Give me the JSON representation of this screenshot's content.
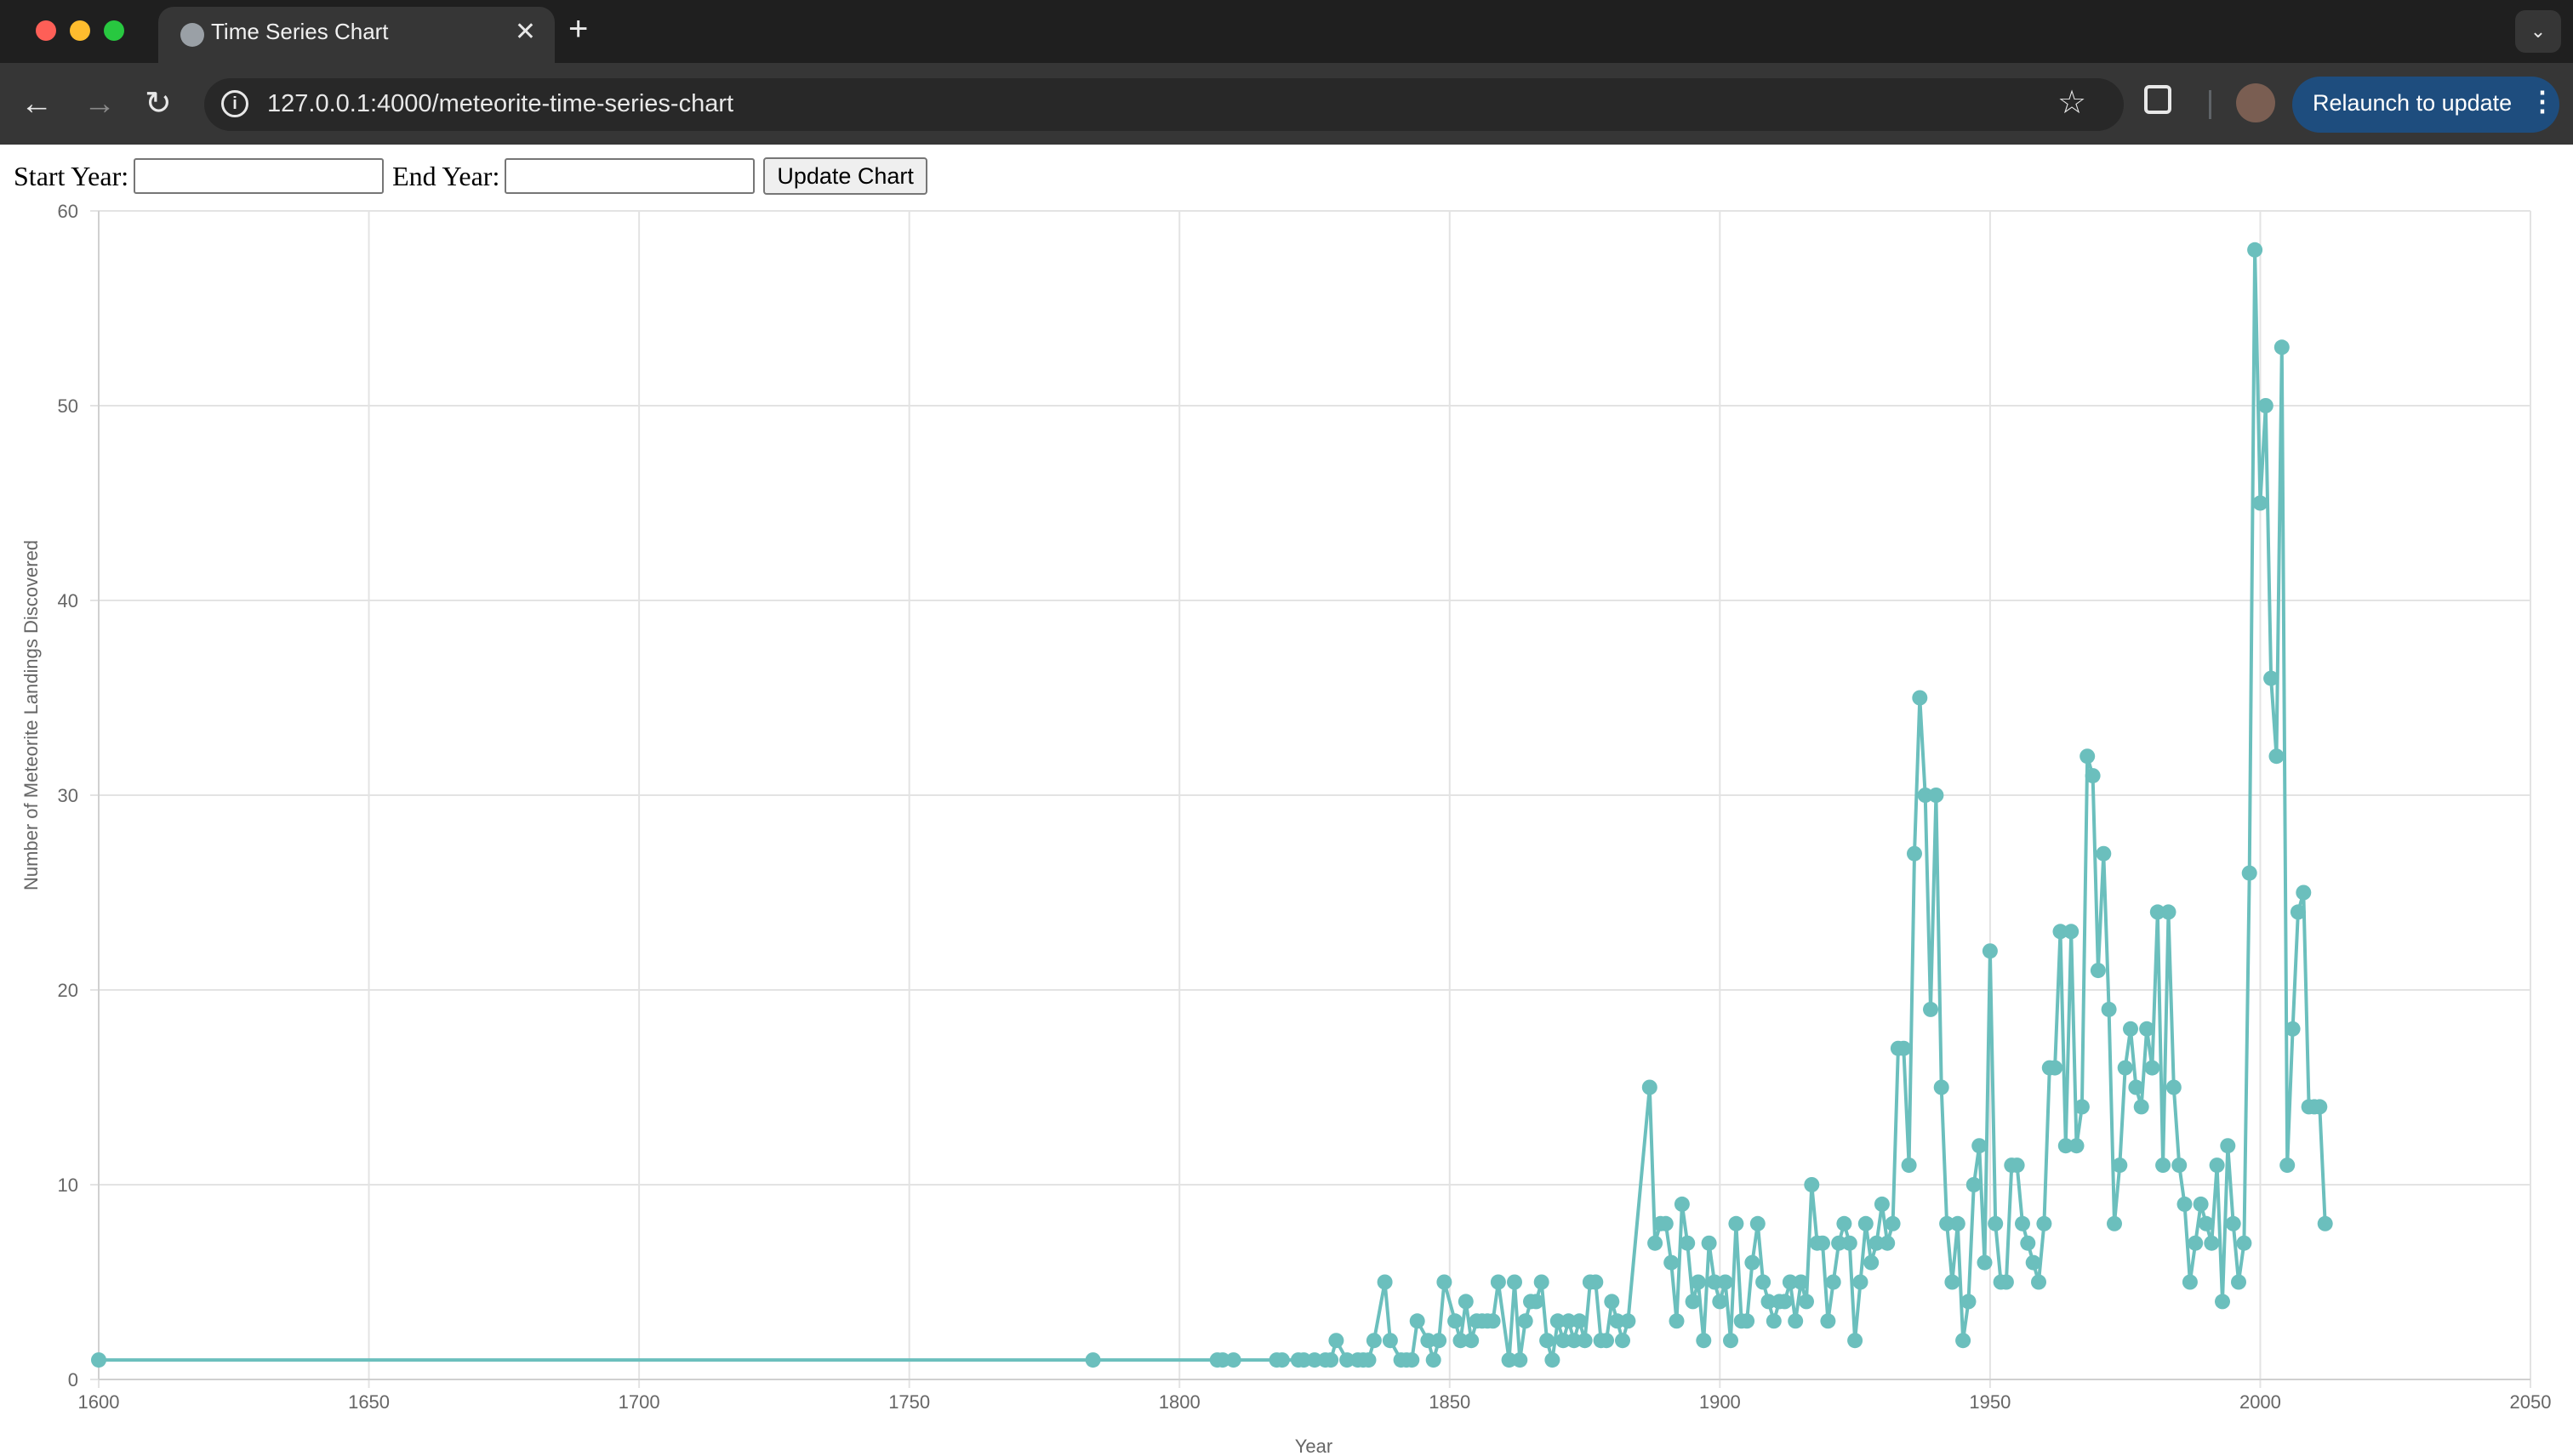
{
  "browser": {
    "tab_title": "Time Series Chart",
    "url": "127.0.0.1:4000/meteorite-time-series-chart",
    "relaunch_label": "Relaunch to update"
  },
  "controls": {
    "start_label": "Start Year:",
    "end_label": "End Year:",
    "start_value": "",
    "end_value": "",
    "update_label": "Update Chart"
  },
  "chart_data": {
    "type": "line",
    "xlabel": "Year",
    "ylabel": "Number of Meteorite Landings Discovered",
    "xlim": [
      1600,
      2050
    ],
    "ylim": [
      0,
      60
    ],
    "x_ticks": [
      1600,
      1650,
      1700,
      1750,
      1800,
      1850,
      1900,
      1950,
      2000,
      2050
    ],
    "y_ticks": [
      0,
      10,
      20,
      30,
      40,
      50,
      60
    ],
    "grid": true,
    "line_color": "#6bbfbd",
    "points": [
      [
        1600,
        1
      ],
      [
        1784,
        1
      ],
      [
        1807,
        1
      ],
      [
        1808,
        1
      ],
      [
        1810,
        1
      ],
      [
        1818,
        1
      ],
      [
        1819,
        1
      ],
      [
        1822,
        1
      ],
      [
        1823,
        1
      ],
      [
        1825,
        1
      ],
      [
        1827,
        1
      ],
      [
        1828,
        1
      ],
      [
        1829,
        2
      ],
      [
        1831,
        1
      ],
      [
        1833,
        1
      ],
      [
        1834,
        1
      ],
      [
        1835,
        1
      ],
      [
        1836,
        2
      ],
      [
        1838,
        5
      ],
      [
        1839,
        2
      ],
      [
        1841,
        1
      ],
      [
        1842,
        1
      ],
      [
        1843,
        1
      ],
      [
        1844,
        3
      ],
      [
        1846,
        2
      ],
      [
        1847,
        1
      ],
      [
        1848,
        2
      ],
      [
        1849,
        5
      ],
      [
        1851,
        3
      ],
      [
        1852,
        2
      ],
      [
        1853,
        4
      ],
      [
        1854,
        2
      ],
      [
        1855,
        3
      ],
      [
        1856,
        3
      ],
      [
        1857,
        3
      ],
      [
        1858,
        3
      ],
      [
        1859,
        5
      ],
      [
        1861,
        1
      ],
      [
        1862,
        5
      ],
      [
        1863,
        1
      ],
      [
        1864,
        3
      ],
      [
        1865,
        4
      ],
      [
        1866,
        4
      ],
      [
        1867,
        5
      ],
      [
        1868,
        2
      ],
      [
        1869,
        1
      ],
      [
        1870,
        3
      ],
      [
        1871,
        2
      ],
      [
        1872,
        3
      ],
      [
        1873,
        2
      ],
      [
        1874,
        3
      ],
      [
        1875,
        2
      ],
      [
        1876,
        5
      ],
      [
        1877,
        5
      ],
      [
        1878,
        2
      ],
      [
        1879,
        2
      ],
      [
        1880,
        4
      ],
      [
        1881,
        3
      ],
      [
        1882,
        2
      ],
      [
        1883,
        3
      ],
      [
        1887,
        15
      ],
      [
        1888,
        7
      ],
      [
        1889,
        8
      ],
      [
        1890,
        8
      ],
      [
        1891,
        6
      ],
      [
        1892,
        3
      ],
      [
        1893,
        9
      ],
      [
        1894,
        7
      ],
      [
        1895,
        4
      ],
      [
        1896,
        5
      ],
      [
        1897,
        2
      ],
      [
        1898,
        7
      ],
      [
        1899,
        5
      ],
      [
        1900,
        4
      ],
      [
        1901,
        5
      ],
      [
        1902,
        2
      ],
      [
        1903,
        8
      ],
      [
        1904,
        3
      ],
      [
        1905,
        3
      ],
      [
        1906,
        6
      ],
      [
        1907,
        8
      ],
      [
        1908,
        5
      ],
      [
        1909,
        4
      ],
      [
        1910,
        3
      ],
      [
        1911,
        4
      ],
      [
        1912,
        4
      ],
      [
        1913,
        5
      ],
      [
        1914,
        3
      ],
      [
        1915,
        5
      ],
      [
        1916,
        4
      ],
      [
        1917,
        10
      ],
      [
        1918,
        7
      ],
      [
        1919,
        7
      ],
      [
        1920,
        3
      ],
      [
        1921,
        5
      ],
      [
        1922,
        7
      ],
      [
        1923,
        8
      ],
      [
        1924,
        7
      ],
      [
        1925,
        2
      ],
      [
        1926,
        5
      ],
      [
        1927,
        8
      ],
      [
        1928,
        6
      ],
      [
        1929,
        7
      ],
      [
        1930,
        9
      ],
      [
        1931,
        7
      ],
      [
        1932,
        8
      ],
      [
        1933,
        17
      ],
      [
        1934,
        17
      ],
      [
        1935,
        11
      ],
      [
        1936,
        27
      ],
      [
        1937,
        35
      ],
      [
        1938,
        30
      ],
      [
        1939,
        19
      ],
      [
        1940,
        30
      ],
      [
        1941,
        15
      ],
      [
        1942,
        8
      ],
      [
        1943,
        5
      ],
      [
        1944,
        8
      ],
      [
        1945,
        2
      ],
      [
        1946,
        4
      ],
      [
        1947,
        10
      ],
      [
        1948,
        12
      ],
      [
        1949,
        6
      ],
      [
        1950,
        22
      ],
      [
        1951,
        8
      ],
      [
        1952,
        5
      ],
      [
        1953,
        5
      ],
      [
        1954,
        11
      ],
      [
        1955,
        11
      ],
      [
        1956,
        8
      ],
      [
        1957,
        7
      ],
      [
        1958,
        6
      ],
      [
        1959,
        5
      ],
      [
        1960,
        8
      ],
      [
        1961,
        16
      ],
      [
        1962,
        16
      ],
      [
        1963,
        23
      ],
      [
        1964,
        12
      ],
      [
        1965,
        23
      ],
      [
        1966,
        12
      ],
      [
        1967,
        14
      ],
      [
        1968,
        32
      ],
      [
        1969,
        31
      ],
      [
        1970,
        21
      ],
      [
        1971,
        27
      ],
      [
        1972,
        19
      ],
      [
        1973,
        8
      ],
      [
        1974,
        11
      ],
      [
        1975,
        16
      ],
      [
        1976,
        18
      ],
      [
        1977,
        15
      ],
      [
        1978,
        14
      ],
      [
        1979,
        18
      ],
      [
        1980,
        16
      ],
      [
        1981,
        24
      ],
      [
        1982,
        11
      ],
      [
        1983,
        24
      ],
      [
        1984,
        15
      ],
      [
        1985,
        11
      ],
      [
        1986,
        9
      ],
      [
        1987,
        5
      ],
      [
        1988,
        7
      ],
      [
        1989,
        9
      ],
      [
        1990,
        8
      ],
      [
        1991,
        7
      ],
      [
        1992,
        11
      ],
      [
        1993,
        4
      ],
      [
        1994,
        12
      ],
      [
        1995,
        8
      ],
      [
        1996,
        5
      ],
      [
        1997,
        7
      ],
      [
        1998,
        26
      ],
      [
        1999,
        58
      ],
      [
        2000,
        45
      ],
      [
        2001,
        50
      ],
      [
        2002,
        36
      ],
      [
        2003,
        32
      ],
      [
        2004,
        53
      ],
      [
        2005,
        11
      ],
      [
        2006,
        18
      ],
      [
        2007,
        24
      ],
      [
        2008,
        25
      ],
      [
        2009,
        14
      ],
      [
        2010,
        14
      ],
      [
        2011,
        14
      ],
      [
        2012,
        8
      ]
    ]
  }
}
